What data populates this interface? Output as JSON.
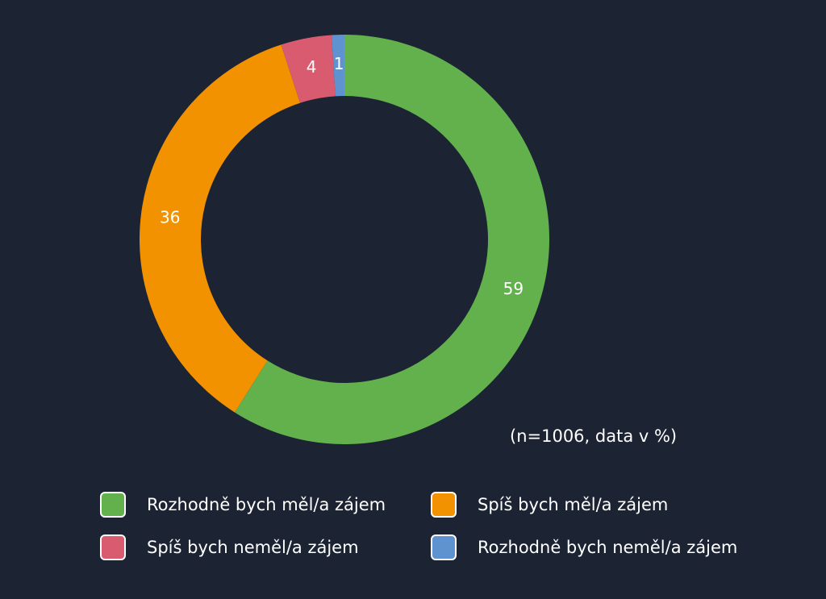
{
  "chart_data": {
    "type": "pie",
    "variant": "donut",
    "categories": [
      "Rozhodně bych měl/a zájem",
      "Spíš bych měl/a zájem",
      "Spíš bych neměl/a zájem",
      "Rozhodně bych neměl/a zájem"
    ],
    "values": [
      59,
      36,
      4,
      1
    ],
    "colors": [
      "#63b14d",
      "#f29200",
      "#d95b70",
      "#5e93cf"
    ],
    "data_labels": [
      "59",
      "36",
      "4",
      "1"
    ],
    "note": "(n=1006, data v %)",
    "legend_position": "bottom"
  }
}
